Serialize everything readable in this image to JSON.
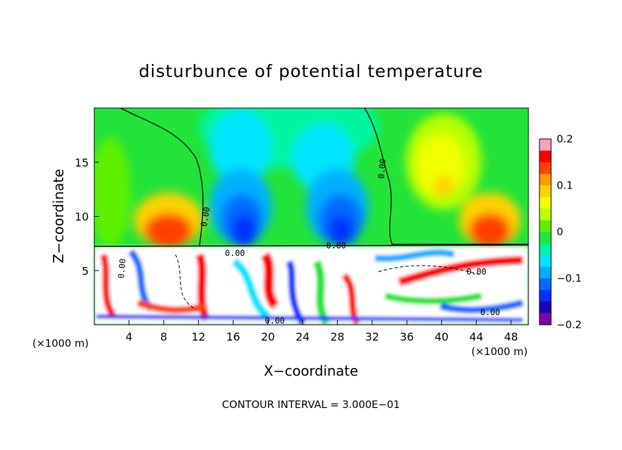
{
  "chart_data": {
    "type": "heatmap",
    "title": "disturbunce of potential temperature",
    "xlabel": "X−coordinate",
    "ylabel": "Z−coordinate",
    "x_unit_left": "(×1000 m)",
    "x_unit_right": "(×1000 m)",
    "xlim": [
      0,
      50
    ],
    "ylim": [
      0,
      20
    ],
    "x_ticks": [
      4,
      8,
      12,
      16,
      20,
      24,
      28,
      32,
      36,
      40,
      44,
      48
    ],
    "y_ticks": [
      5,
      10,
      15
    ],
    "colorbar": {
      "range": [
        -0.2,
        0.2
      ],
      "tick_values": [
        0.2,
        0.1,
        0,
        -0.1,
        -0.2
      ],
      "tick_labels": [
        "0.2",
        "0.1",
        "0",
        "−0.1",
        "−0.2"
      ],
      "colors": [
        "#f4a3b8",
        "#ff0000",
        "#ff4000",
        "#ff9a00",
        "#ffd200",
        "#f2ff00",
        "#b8ff00",
        "#5ef000",
        "#20e640",
        "#00f5a0",
        "#00e5ff",
        "#00b0ff",
        "#006cff",
        "#0030ff",
        "#2000c0",
        "#8000b0"
      ]
    },
    "contour_labels": [
      "0.00",
      "0.00",
      "0.00",
      "0.00",
      "0.00",
      "0.00",
      "0.00",
      "0.00"
    ],
    "footer": "CONTOUR INTERVAL = 3.000E−01",
    "grid": false
  }
}
